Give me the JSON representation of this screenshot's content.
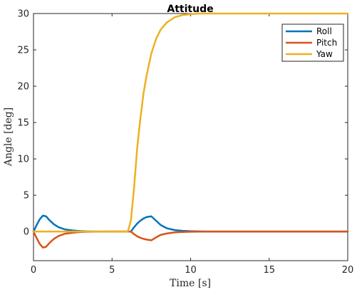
{
  "chart_data": {
    "type": "line",
    "title": "Attitude",
    "xlabel": "Time [s]",
    "ylabel": "Angle [deg]",
    "xlim": [
      0,
      20
    ],
    "ylim": [
      -4,
      30
    ],
    "xticks": [
      0,
      5,
      10,
      15,
      20
    ],
    "yticks": [
      0,
      5,
      10,
      15,
      20,
      25,
      30
    ],
    "grid": false,
    "legend_position": "top-right",
    "series": [
      {
        "name": "Roll",
        "color": "#0072BD",
        "x": [
          0,
          0.2,
          0.4,
          0.6,
          0.8,
          1.0,
          1.3,
          1.6,
          2.0,
          2.5,
          3.0,
          3.5,
          4.0,
          5.0,
          6.0,
          6.2,
          6.4,
          6.6,
          6.8,
          7.0,
          7.2,
          7.5,
          7.8,
          8.1,
          8.5,
          9.0,
          9.5,
          10.0,
          11.0,
          12.0,
          20.0
        ],
        "values": [
          0,
          0.9,
          1.7,
          2.2,
          2.1,
          1.6,
          1.0,
          0.6,
          0.3,
          0.15,
          0.06,
          0.02,
          0.01,
          0,
          0,
          0,
          0.6,
          1.1,
          1.5,
          1.8,
          2.0,
          2.1,
          1.5,
          0.9,
          0.45,
          0.2,
          0.1,
          0.05,
          0.01,
          0,
          0
        ]
      },
      {
        "name": "Pitch",
        "color": "#D95319",
        "x": [
          0,
          0.2,
          0.4,
          0.6,
          0.8,
          1.0,
          1.3,
          1.6,
          2.0,
          2.5,
          3.0,
          3.5,
          4.0,
          5.0,
          6.0,
          6.2,
          6.4,
          6.6,
          6.8,
          7.0,
          7.2,
          7.5,
          7.8,
          8.1,
          8.5,
          9.0,
          9.5,
          10.0,
          11.0,
          12.0,
          20.0
        ],
        "values": [
          0,
          -0.9,
          -1.7,
          -2.2,
          -2.1,
          -1.6,
          -1.0,
          -0.6,
          -0.3,
          -0.15,
          -0.06,
          -0.02,
          -0.01,
          0,
          0,
          0,
          -0.35,
          -0.65,
          -0.85,
          -1.0,
          -1.1,
          -1.2,
          -0.8,
          -0.45,
          -0.25,
          -0.1,
          -0.05,
          -0.02,
          0,
          0,
          0
        ]
      },
      {
        "name": "Yaw",
        "color": "#EDB120",
        "x": [
          0,
          6.0,
          6.2,
          6.4,
          6.6,
          6.8,
          7.0,
          7.2,
          7.5,
          7.8,
          8.1,
          8.5,
          9.0,
          9.5,
          10.0,
          10.5,
          11.0,
          12.0,
          20.0
        ],
        "values": [
          0,
          0,
          1.5,
          6.0,
          11.5,
          15.5,
          19.0,
          21.5,
          24.5,
          26.5,
          27.8,
          28.8,
          29.5,
          29.8,
          29.9,
          30.0,
          30.0,
          30.0,
          30.0
        ]
      }
    ]
  }
}
